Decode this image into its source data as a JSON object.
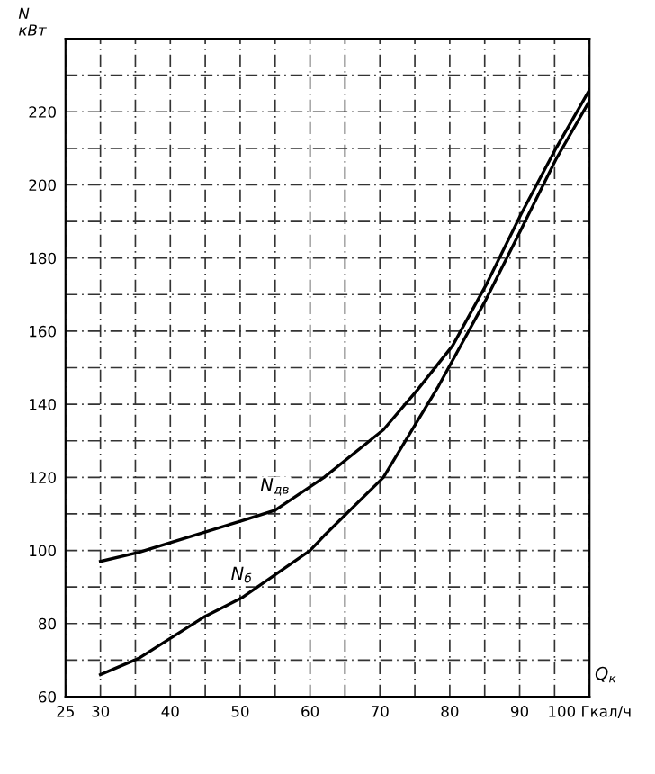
{
  "chart_data": {
    "type": "line",
    "xlabel": "Q$_{к}$",
    "ylabel": "N\nкВт",
    "series": [
      {
        "name": "N$_{дв}$",
        "color": "#000000",
        "x": [
          30,
          35.5,
          50,
          55,
          62,
          70.5,
          75.4,
          80.4,
          85.3,
          90.2,
          95.2,
          100
        ],
        "values": [
          97,
          99.5,
          108,
          111,
          120,
          133,
          144,
          156,
          173,
          192,
          210,
          226
        ]
      },
      {
        "name": "N$_{б}$",
        "color": "#000000",
        "x": [
          30,
          35.5,
          45,
          50.2,
          60,
          62,
          70.5,
          78.4,
          85,
          90,
          95.2,
          100
        ],
        "values": [
          66,
          70.5,
          82,
          87,
          100,
          104,
          120,
          145,
          168,
          187,
          207,
          223
        ]
      }
    ],
    "xlim": [
      25,
      100
    ],
    "ylim": [
      60,
      240
    ],
    "xticks": [
      25,
      30,
      {
        "value": 35,
        "label": null
      },
      40,
      {
        "value": 45,
        "label": null
      },
      50,
      {
        "value": 55,
        "label": null
      },
      60,
      {
        "value": 65,
        "label": null
      },
      70,
      {
        "value": 75,
        "label": null
      },
      80,
      {
        "value": 85,
        "label": null
      },
      90,
      {
        "value": 95,
        "label": null
      },
      {
        "value": 100,
        "label": "100 Гкал/ч"
      }
    ],
    "yticks": [
      60,
      {
        "value": 70,
        "label": null
      },
      80,
      {
        "value": 90,
        "label": null
      },
      100,
      {
        "value": 110,
        "label": null
      },
      120,
      {
        "value": 130,
        "label": null
      },
      140,
      {
        "value": 150,
        "label": null
      },
      160,
      {
        "value": 170,
        "label": null
      },
      180,
      {
        "value": 190,
        "label": null
      },
      200,
      {
        "value": 210,
        "label": null
      },
      220,
      {
        "value": 230,
        "label": null
      },
      {
        "value": 240,
        "label": null
      }
    ],
    "grid": true,
    "line_style": "solid",
    "marker": "none",
    "legend": false
  }
}
